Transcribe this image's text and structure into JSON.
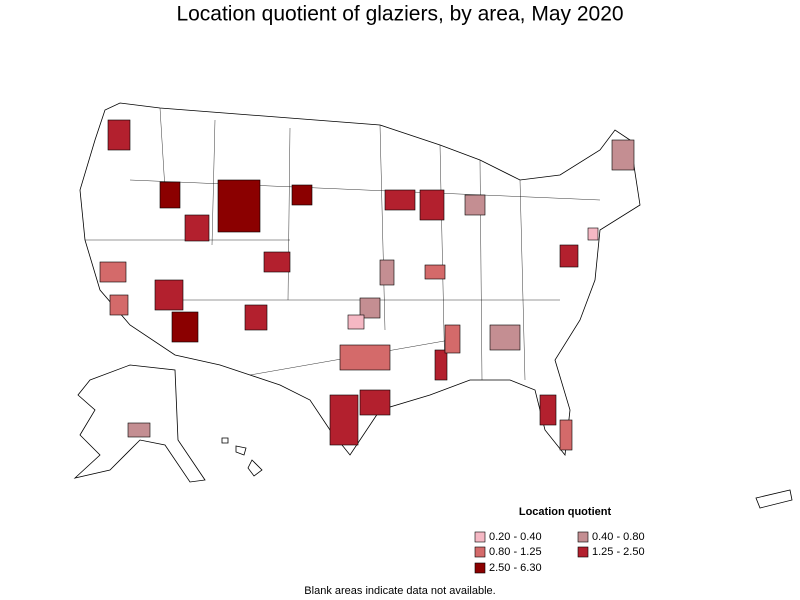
{
  "title": "Location quotient of glaziers, by area, May 2020",
  "legend": {
    "title": "Location quotient",
    "items": [
      {
        "label": "0.20 - 0.40",
        "color": "#f5b8c4"
      },
      {
        "label": "0.40 - 0.80",
        "color": "#c48e92"
      },
      {
        "label": "0.80 - 1.25",
        "color": "#d46a6a"
      },
      {
        "label": "1.25 - 2.50",
        "color": "#b3202e"
      },
      {
        "label": "2.50 - 6.30",
        "color": "#8b0000"
      }
    ]
  },
  "footnote": "Blank areas indicate data not available."
}
